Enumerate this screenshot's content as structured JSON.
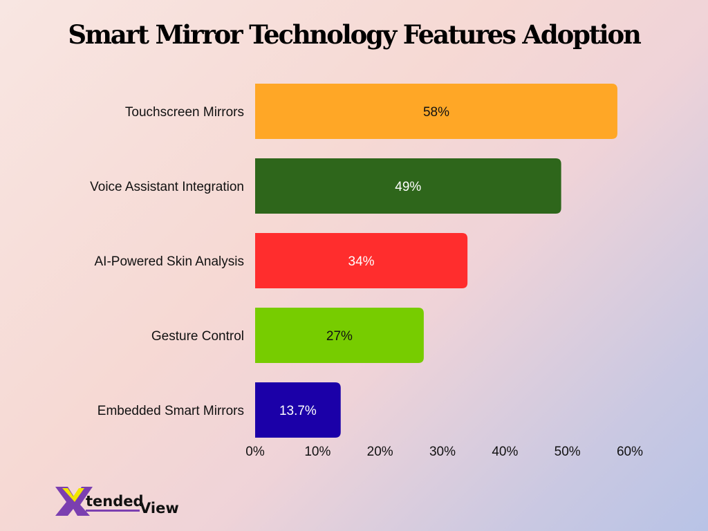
{
  "chart_data": {
    "type": "bar",
    "orientation": "horizontal",
    "title": "Smart Mirror Technology Features Adoption",
    "categories": [
      "Touchscreen Mirrors",
      "Voice Assistant Integration",
      "AI-Powered Skin Analysis",
      "Gesture Control",
      "Embedded Smart Mirrors"
    ],
    "values": [
      58,
      49,
      34,
      27,
      13.7
    ],
    "data_labels": [
      "58%",
      "49%",
      "34%",
      "27%",
      "13.7%"
    ],
    "colors": [
      "#ffa726",
      "#2e661b",
      "#ff2d2d",
      "#77cc00",
      "#1b00a8"
    ],
    "label_colors": [
      "#111111",
      "#ffffff",
      "#ffffff",
      "#111111",
      "#ffffff"
    ],
    "xlim": [
      0,
      60
    ],
    "x_ticks": [
      "0%",
      "10%",
      "20%",
      "30%",
      "40%",
      "50%",
      "60%"
    ],
    "grid": false,
    "legend": "none"
  },
  "logo": {
    "text_part1": "tended",
    "text_part2": "View",
    "letter": "X"
  }
}
